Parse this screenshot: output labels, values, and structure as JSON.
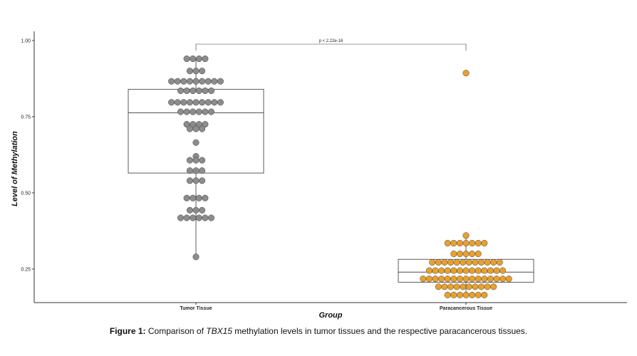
{
  "chart_data": {
    "type": "boxplot-dotplot",
    "xlabel": "Group",
    "ylabel": "Level of Methylation",
    "ylim": [
      0.14,
      1.03
    ],
    "yticks": [
      0.25,
      0.5,
      0.75,
      1.0
    ],
    "ytick_labels": [
      "0.25",
      "0.50",
      "0.75",
      "1.00"
    ],
    "categories": [
      "Tumor Tissue",
      "Paracancerous Tissue"
    ],
    "colors": {
      "Tumor Tissue": "#8c8c8c",
      "Paracancerous Tissue": "#e8a02e"
    },
    "boxes": [
      {
        "group": "Tumor Tissue",
        "q1": 0.565,
        "median": 0.763,
        "q3": 0.84,
        "whisker_low": 0.29,
        "whisker_high": 0.94
      },
      {
        "group": "Paracancerous Tissue",
        "q1": 0.207,
        "median": 0.24,
        "q3": 0.282,
        "whisker_low": 0.165,
        "whisker_high": 0.36
      }
    ],
    "points": [
      {
        "group": "Tumor Tissue",
        "values": [
          0.94,
          0.94,
          0.94,
          0.94,
          0.9,
          0.9,
          0.9,
          0.866,
          0.866,
          0.866,
          0.866,
          0.866,
          0.866,
          0.866,
          0.866,
          0.866,
          0.835,
          0.835,
          0.835,
          0.835,
          0.835,
          0.835,
          0.797,
          0.797,
          0.797,
          0.797,
          0.797,
          0.797,
          0.797,
          0.797,
          0.797,
          0.766,
          0.766,
          0.766,
          0.766,
          0.766,
          0.766,
          0.725,
          0.725,
          0.725,
          0.725,
          0.71,
          0.71,
          0.71,
          0.665,
          0.62,
          0.607,
          0.607,
          0.607,
          0.573,
          0.573,
          0.573,
          0.54,
          0.54,
          0.54,
          0.483,
          0.483,
          0.483,
          0.483,
          0.443,
          0.443,
          0.443,
          0.418,
          0.418,
          0.418,
          0.418,
          0.418,
          0.418,
          0.29
        ]
      },
      {
        "group": "Paracancerous Tissue",
        "values": [
          0.893,
          0.36,
          0.335,
          0.335,
          0.335,
          0.335,
          0.335,
          0.335,
          0.335,
          0.3,
          0.3,
          0.3,
          0.3,
          0.3,
          0.272,
          0.272,
          0.272,
          0.272,
          0.272,
          0.272,
          0.272,
          0.272,
          0.272,
          0.272,
          0.272,
          0.272,
          0.245,
          0.245,
          0.245,
          0.245,
          0.245,
          0.245,
          0.245,
          0.245,
          0.245,
          0.245,
          0.245,
          0.245,
          0.245,
          0.218,
          0.218,
          0.218,
          0.218,
          0.218,
          0.218,
          0.218,
          0.218,
          0.218,
          0.218,
          0.218,
          0.218,
          0.218,
          0.218,
          0.218,
          0.192,
          0.192,
          0.192,
          0.192,
          0.192,
          0.192,
          0.192,
          0.192,
          0.192,
          0.192,
          0.165,
          0.165,
          0.165,
          0.165,
          0.165,
          0.165,
          0.165
        ]
      }
    ],
    "annotation": {
      "text": "p < 2.22e-16",
      "between": [
        "Tumor Tissue",
        "Paracancerous Tissue"
      ]
    }
  },
  "caption": {
    "label": "Figure 1:",
    "pre": " Comparison of ",
    "gene": "TBX15",
    "post": " methylation levels in tumor tissues and the respective paracancerous tissues."
  }
}
